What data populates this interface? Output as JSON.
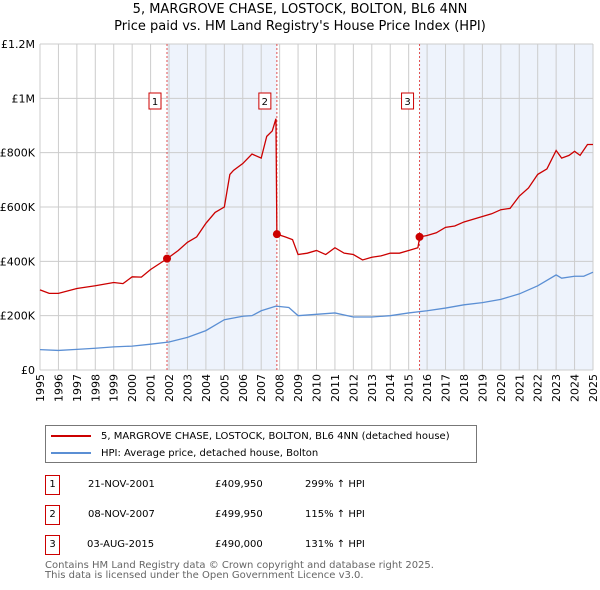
{
  "title": "5, MARGROVE CHASE, LOSTOCK, BOLTON, BL6 4NN",
  "subtitle": "Price paid vs. HM Land Registry's House Price Index (HPI)",
  "colors": {
    "property": "#cc0000",
    "hpi": "#5b8fd4",
    "shade": "#eef3fc"
  },
  "chart_data": {
    "type": "line",
    "xlim": [
      1995,
      2025
    ],
    "ylim": [
      0,
      1200000
    ],
    "yticks": [
      {
        "v": 0,
        "label": "£0"
      },
      {
        "v": 200000,
        "label": "£200K"
      },
      {
        "v": 400000,
        "label": "£400K"
      },
      {
        "v": 600000,
        "label": "£600K"
      },
      {
        "v": 800000,
        "label": "£800K"
      },
      {
        "v": 1000000,
        "label": "£1M"
      },
      {
        "v": 1200000,
        "label": "£1.2M"
      }
    ],
    "xticks": [
      "1995",
      "1996",
      "1997",
      "1998",
      "1999",
      "2000",
      "2001",
      "2002",
      "2003",
      "2004",
      "2005",
      "2006",
      "2007",
      "2008",
      "2009",
      "2010",
      "2011",
      "2012",
      "2013",
      "2014",
      "2015",
      "2016",
      "2017",
      "2018",
      "2019",
      "2020",
      "2021",
      "2022",
      "2023",
      "2024",
      "2025"
    ],
    "series": [
      {
        "name": "5, MARGROVE CHASE, LOSTOCK, BOLTON, BL6 4NN (detached house)",
        "color": "#cc0000",
        "x": [
          1995,
          1995.5,
          1996,
          1997,
          1998,
          1999,
          1999.5,
          2000,
          2000.5,
          2001,
          2001.9,
          2002.5,
          2003,
          2003.5,
          2004,
          2004.5,
          2005,
          2005.3,
          2005.5,
          2006,
          2006.5,
          2007,
          2007.3,
          2007.6,
          2007.8,
          2007.85,
          2008.3,
          2008.7,
          2009,
          2009.5,
          2010,
          2010.5,
          2011,
          2011.5,
          2012,
          2012.5,
          2013,
          2013.5,
          2014,
          2014.5,
          2015,
          2015.5,
          2015.6,
          2016,
          2016.5,
          2017,
          2017.5,
          2018,
          2018.5,
          2019,
          2019.5,
          2020,
          2020.5,
          2021,
          2021.5,
          2022,
          2022.5,
          2023,
          2023.3,
          2023.7,
          2024,
          2024.3,
          2024.7,
          2025
        ],
        "y": [
          295000,
          282000,
          282000,
          300000,
          310000,
          322000,
          318000,
          343000,
          342000,
          370000,
          409950,
          440000,
          470000,
          490000,
          540000,
          580000,
          600000,
          720000,
          735000,
          760000,
          795000,
          780000,
          860000,
          880000,
          925000,
          499950,
          490000,
          480000,
          425000,
          430000,
          440000,
          425000,
          450000,
          430000,
          425000,
          405000,
          415000,
          420000,
          430000,
          430000,
          440000,
          450000,
          490000,
          495000,
          505000,
          525000,
          530000,
          545000,
          555000,
          565000,
          575000,
          590000,
          595000,
          640000,
          670000,
          720000,
          740000,
          808000,
          780000,
          790000,
          805000,
          790000,
          830000,
          830000
        ]
      },
      {
        "name": "HPI: Average price, detached house, Bolton",
        "color": "#5b8fd4",
        "x": [
          1995,
          1996,
          1997,
          1998,
          1999,
          2000,
          2001,
          2002,
          2003,
          2004,
          2005,
          2006,
          2006.5,
          2007,
          2007.8,
          2008.5,
          2009,
          2010,
          2011,
          2012,
          2013,
          2014,
          2015,
          2016,
          2017,
          2018,
          2019,
          2020,
          2021,
          2022,
          2023,
          2023.3,
          2024,
          2024.5,
          2025
        ],
        "y": [
          75000,
          72000,
          76000,
          80000,
          85000,
          88000,
          95000,
          103000,
          120000,
          145000,
          185000,
          198000,
          200000,
          218000,
          235000,
          230000,
          200000,
          205000,
          210000,
          195000,
          195000,
          200000,
          210000,
          218000,
          228000,
          240000,
          248000,
          260000,
          280000,
          310000,
          350000,
          338000,
          345000,
          345000,
          360000
        ]
      }
    ],
    "sales": [
      {
        "label": "1",
        "x": 2001.89,
        "y": 409950,
        "date": "21-NOV-2001",
        "price": "£409,950",
        "hpi": "299% ↑ HPI"
      },
      {
        "label": "2",
        "x": 2007.85,
        "y": 499950,
        "date": "08-NOV-2007",
        "price": "£499,950",
        "hpi": "115% ↑ HPI"
      },
      {
        "label": "3",
        "x": 2015.59,
        "y": 490000,
        "date": "03-AUG-2015",
        "price": "£490,000",
        "hpi": "131% ↑ HPI"
      }
    ]
  },
  "footer": [
    "Contains HM Land Registry data © Crown copyright and database right 2025.",
    "This data is licensed under the Open Government Licence v3.0."
  ]
}
